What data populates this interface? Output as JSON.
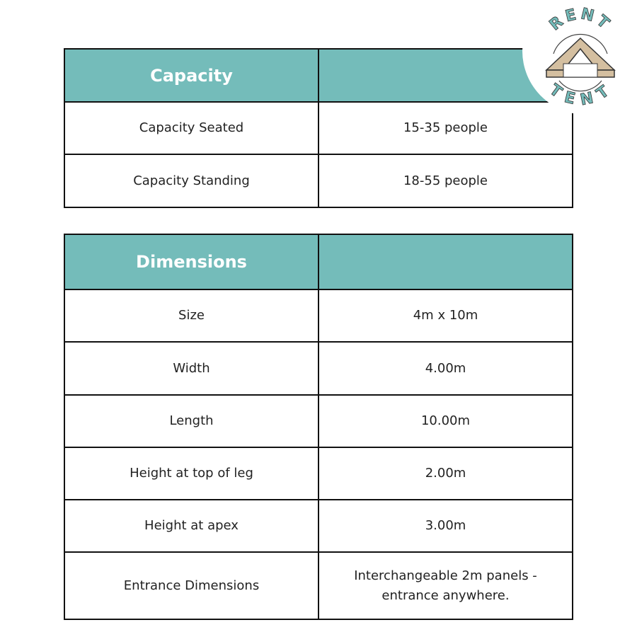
{
  "capacity": {
    "header": "Capacity",
    "rows": [
      {
        "label": "Capacity Seated",
        "value": "15-35 people"
      },
      {
        "label": "Capacity Standing",
        "value": "18-55 people"
      }
    ]
  },
  "dimensions": {
    "header": "Dimensions",
    "rows": [
      {
        "label": "Size",
        "value": "4m x 10m"
      },
      {
        "label": "Width",
        "value": "4.00m"
      },
      {
        "label": "Length",
        "value": "10.00m"
      },
      {
        "label": "Height at top of leg",
        "value": "2.00m"
      },
      {
        "label": "Height at apex",
        "value": "3.00m"
      },
      {
        "label": "Entrance Dimensions",
        "value": "Interchangeable 2m panels - entrance anywhere."
      }
    ]
  },
  "logo": {
    "top_text": "RENT",
    "bottom_text": "TENT"
  },
  "colors": {
    "accent": "#74bcba",
    "tent": "#d4bfa0"
  }
}
